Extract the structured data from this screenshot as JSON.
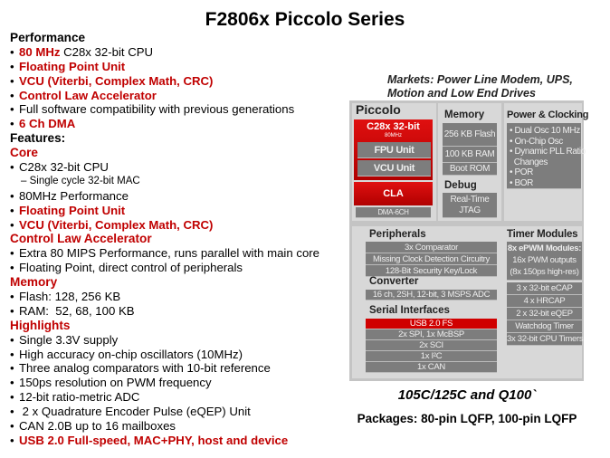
{
  "title": "F2806x Piccolo Series",
  "left_lines": [
    {
      "kind": "head",
      "segments": [
        {
          "text": "Performance",
          "red": false
        }
      ]
    },
    {
      "kind": "bullet",
      "segments": [
        {
          "text": "80 MHz ",
          "red": true
        },
        {
          "text": "C28x 32-bit CPU",
          "red": false
        }
      ]
    },
    {
      "kind": "bullet",
      "segments": [
        {
          "text": "Floating Point Unit",
          "red": true
        }
      ]
    },
    {
      "kind": "bullet",
      "segments": [
        {
          "text": "VCU (Viterbi, Complex Math, CRC)",
          "red": true
        }
      ]
    },
    {
      "kind": "bullet",
      "segments": [
        {
          "text": "Control Law Accelerator",
          "red": true
        }
      ]
    },
    {
      "kind": "bullet",
      "segments": [
        {
          "text": "Full software compatibility with previous generations",
          "red": false
        }
      ]
    },
    {
      "kind": "bullet",
      "segments": [
        {
          "text": "6 Ch DMA",
          "red": true
        }
      ]
    },
    {
      "kind": "head",
      "segments": [
        {
          "text": "Features:",
          "red": false
        }
      ]
    },
    {
      "kind": "head",
      "segments": [
        {
          "text": "Core",
          "red": true
        }
      ]
    },
    {
      "kind": "bullet",
      "segments": [
        {
          "text": "C28x 32-bit CPU",
          "red": false
        }
      ]
    },
    {
      "kind": "sub",
      "segments": [
        {
          "text": "– Single cycle 32-bit MAC",
          "red": false
        }
      ]
    },
    {
      "kind": "bullet",
      "segments": [
        {
          "text": "80MHz Performance",
          "red": false
        }
      ]
    },
    {
      "kind": "bullet",
      "segments": [
        {
          "text": "Floating Point Unit",
          "red": true
        }
      ]
    },
    {
      "kind": "bullet",
      "segments": [
        {
          "text": "VCU (Viterbi, Complex Math, CRC)",
          "red": true
        }
      ]
    },
    {
      "kind": "head",
      "segments": [
        {
          "text": "Control Law Accelerator",
          "red": true
        }
      ]
    },
    {
      "kind": "bullet",
      "segments": [
        {
          "text": "Extra 80 MIPS Performance, runs parallel with main core",
          "red": false
        }
      ]
    },
    {
      "kind": "bullet",
      "segments": [
        {
          "text": "Floating Point, direct control of peripherals",
          "red": false
        }
      ]
    },
    {
      "kind": "head",
      "segments": [
        {
          "text": "Memory",
          "red": true
        }
      ]
    },
    {
      "kind": "bullet",
      "segments": [
        {
          "text": "Flash: 128, 256 KB",
          "red": false
        }
      ]
    },
    {
      "kind": "bullet",
      "segments": [
        {
          "text": "RAM:  52, 68, 100 KB",
          "red": false
        }
      ]
    },
    {
      "kind": "head",
      "segments": [
        {
          "text": "Highlights",
          "red": true
        }
      ]
    },
    {
      "kind": "bullet",
      "segments": [
        {
          "text": "Single 3.3V supply",
          "red": false
        }
      ]
    },
    {
      "kind": "bullet",
      "segments": [
        {
          "text": "High accuracy on-chip oscillators (10MHz)",
          "red": false
        }
      ]
    },
    {
      "kind": "bullet",
      "segments": [
        {
          "text": "Three analog comparators with 10-bit reference",
          "red": false
        }
      ]
    },
    {
      "kind": "bullet",
      "segments": [
        {
          "text": "150ps resolution on PWM frequency",
          "red": false
        }
      ]
    },
    {
      "kind": "bullet",
      "segments": [
        {
          "text": "12-bit ratio-metric ADC",
          "red": false
        }
      ]
    },
    {
      "kind": "bullet",
      "segments": [
        {
          "text": " 2 x Quadrature Encoder Pulse (eQEP) Unit",
          "red": false
        }
      ]
    },
    {
      "kind": "bullet",
      "segments": [
        {
          "text": "CAN 2.0B up to 16 mailboxes",
          "red": false
        }
      ]
    },
    {
      "kind": "bullet",
      "segments": [
        {
          "text": "USB 2.0 Full-speed, MAC+PHY, host and device",
          "red": true
        }
      ]
    }
  ],
  "markets": {
    "line1": "Markets: Power Line Modem, UPS,",
    "line2": "Motion and Low End Drives"
  },
  "diagram": {
    "piccolo": "Piccolo",
    "cpu": "C28x 32-bit",
    "cpu_speed": "80MHz",
    "fpu": "FPU Unit",
    "vcu": "VCU Unit",
    "cla": "CLA",
    "dma": "DMA-6CH",
    "memory_label": "Memory",
    "flash": "256 KB Flash",
    "ram": "100 KB RAM",
    "boot": "Boot ROM",
    "debug_label": "Debug",
    "jtag1": "Real-Time",
    "jtag2": "JTAG",
    "power_label": "Power & Clocking",
    "power_items": [
      "• Dual Osc 10 MHz",
      "• On-Chip Osc",
      "• Dynamic PLL Ratio",
      "  Changes",
      "• POR",
      "• BOR"
    ],
    "peripherals_label": "Peripherals",
    "peripherals": [
      "3x Comparator",
      "Missing Clock Detection Circuitry",
      "128-Bit Security Key/Lock"
    ],
    "converter_label": "Converter",
    "adc": "16 ch, 2SH, 12-bit, 3 MSPS ADC",
    "serial_label": "Serial Interfaces",
    "serial": [
      "USB 2.0 FS",
      "2x SPI, 1x McBSP",
      "2x SCI",
      "1x I²C",
      "1x CAN"
    ],
    "timer_label": "Timer Modules",
    "epwm1": "8x ePWM Modules:",
    "epwm2": "16x PWM outputs",
    "epwm3": "(8x 150ps high-res)",
    "timers": [
      "3 x 32-bit eCAP",
      "4 x HRCAP",
      "2 x 32-bit eQEP",
      "Watchdog Timer",
      "3x 32-bit CPU Timers"
    ]
  },
  "qualification": "105C/125C and Q100`",
  "packages": "Packages: 80-pin LQFP, 100-pin LQFP",
  "colors": {
    "red": "#c00000",
    "box_gray": "#7d7d7d",
    "panel_gray": "#d8d8d8"
  }
}
